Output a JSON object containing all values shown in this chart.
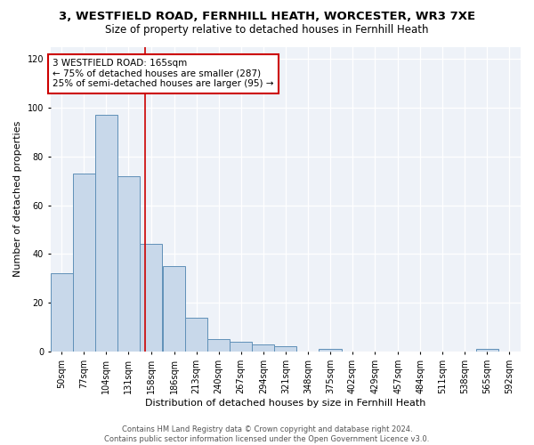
{
  "title": "3, WESTFIELD ROAD, FERNHILL HEATH, WORCESTER, WR3 7XE",
  "subtitle": "Size of property relative to detached houses in Fernhill Heath",
  "xlabel": "Distribution of detached houses by size in Fernhill Heath",
  "ylabel": "Number of detached properties",
  "bin_edges": [
    50,
    77,
    104,
    131,
    158,
    186,
    213,
    240,
    267,
    294,
    321,
    348,
    375,
    402,
    429,
    457,
    484,
    511,
    538,
    565,
    592
  ],
  "bar_heights": [
    32,
    73,
    97,
    72,
    44,
    35,
    14,
    5,
    4,
    3,
    2,
    0,
    1,
    0,
    0,
    0,
    0,
    0,
    0,
    1
  ],
  "bar_color": "#c8d8ea",
  "bar_edge_color": "#6090b8",
  "red_line_x": 165,
  "annotation_line1": "3 WESTFIELD ROAD: 165sqm",
  "annotation_line2": "← 75% of detached houses are smaller (287)",
  "annotation_line3": "25% of semi-detached houses are larger (95) →",
  "annotation_box_color": "#ffffff",
  "annotation_box_edge_color": "#cc0000",
  "red_line_color": "#cc0000",
  "ylim": [
    0,
    125
  ],
  "yticks": [
    0,
    20,
    40,
    60,
    80,
    100,
    120
  ],
  "bg_color": "#eef2f8",
  "footer_line1": "Contains HM Land Registry data © Crown copyright and database right 2024.",
  "footer_line2": "Contains public sector information licensed under the Open Government Licence v3.0.",
  "title_fontsize": 9.5,
  "subtitle_fontsize": 8.5,
  "xlabel_fontsize": 8,
  "ylabel_fontsize": 8,
  "tick_fontsize": 7,
  "footer_fontsize": 6,
  "annotation_fontsize": 7.5
}
